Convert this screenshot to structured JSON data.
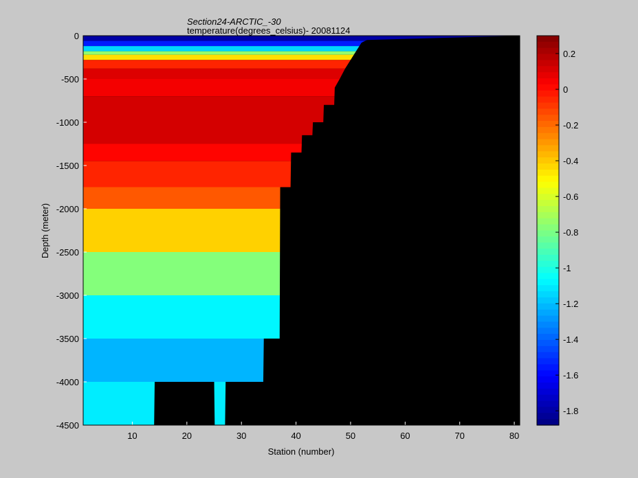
{
  "chart_data": {
    "type": "heatmap",
    "title": "Section24-ARCTIC_-30",
    "subtitle": "temperature(degrees_celsius)- 20081124",
    "xlabel": "Station (number)",
    "ylabel": "Depth (meter)",
    "xlim": [
      1,
      81
    ],
    "ylim": [
      -4500,
      0
    ],
    "x_ticks": [
      "10",
      "20",
      "30",
      "40",
      "50",
      "60",
      "70",
      "80"
    ],
    "y_ticks": [
      "0",
      "-500",
      "-1000",
      "-1500",
      "-2000",
      "-2500",
      "-3000",
      "-3500",
      "-4000",
      "-4500"
    ],
    "colorbar": {
      "range": [
        -1.88,
        0.3
      ],
      "ticks": [
        "0.2",
        "0",
        "-0.2",
        "-0.4",
        "-0.6",
        "-0.8",
        "-1",
        "-1.2",
        "-1.4",
        "-1.6",
        "-1.8"
      ],
      "colormap": "jet"
    },
    "background_color": "#000000",
    "bottom_depth_by_station": [
      {
        "x": 1,
        "depth": -4500
      },
      {
        "x": 14,
        "depth": -4500
      },
      {
        "x": 14.1,
        "depth": -4000
      },
      {
        "x": 25,
        "depth": -4000
      },
      {
        "x": 25.1,
        "depth": -4500
      },
      {
        "x": 27,
        "depth": -4500
      },
      {
        "x": 27.1,
        "depth": -4000
      },
      {
        "x": 34,
        "depth": -4000
      },
      {
        "x": 34.1,
        "depth": -3500
      },
      {
        "x": 37,
        "depth": -3500
      },
      {
        "x": 37.1,
        "depth": -1750
      },
      {
        "x": 39,
        "depth": -1750
      },
      {
        "x": 39.1,
        "depth": -1350
      },
      {
        "x": 41,
        "depth": -1350
      },
      {
        "x": 41.1,
        "depth": -1150
      },
      {
        "x": 43,
        "depth": -1150
      },
      {
        "x": 43.1,
        "depth": -1000
      },
      {
        "x": 45,
        "depth": -1000
      },
      {
        "x": 45.1,
        "depth": -800
      },
      {
        "x": 47,
        "depth": -800
      },
      {
        "x": 47.1,
        "depth": -600
      },
      {
        "x": 48,
        "depth": -500
      },
      {
        "x": 49,
        "depth": -380
      },
      {
        "x": 50,
        "depth": -280
      },
      {
        "x": 51,
        "depth": -180
      },
      {
        "x": 52,
        "depth": -80
      },
      {
        "x": 53,
        "depth": -50
      }
    ],
    "layers": [
      {
        "top": 0,
        "bottom": -60,
        "value": -1.8
      },
      {
        "top": -60,
        "bottom": -120,
        "value": -1.55
      },
      {
        "top": -120,
        "bottom": -180,
        "value": -1.15
      },
      {
        "top": -180,
        "bottom": -220,
        "value": -0.75
      },
      {
        "top": -220,
        "bottom": -280,
        "value": -0.45
      },
      {
        "top": -280,
        "bottom": -380,
        "value": -0.05
      },
      {
        "top": -380,
        "bottom": -500,
        "value": 0.1
      },
      {
        "top": -500,
        "bottom": -700,
        "value": 0.05
      },
      {
        "top": -700,
        "bottom": -1250,
        "value": 0.12
      },
      {
        "top": -1250,
        "bottom": -1450,
        "value": 0.02
      },
      {
        "top": -1450,
        "bottom": -1750,
        "value": -0.05
      },
      {
        "top": -1750,
        "bottom": -2000,
        "value": -0.16
      },
      {
        "top": -2000,
        "bottom": -2500,
        "value": -0.42
      },
      {
        "top": -2500,
        "bottom": -3000,
        "value": -0.78
      },
      {
        "top": -3000,
        "bottom": -3500,
        "value": -1.08
      },
      {
        "top": -3500,
        "bottom": -4000,
        "value": -1.22
      },
      {
        "top": -4000,
        "bottom": -4500,
        "value": -1.1
      }
    ]
  }
}
